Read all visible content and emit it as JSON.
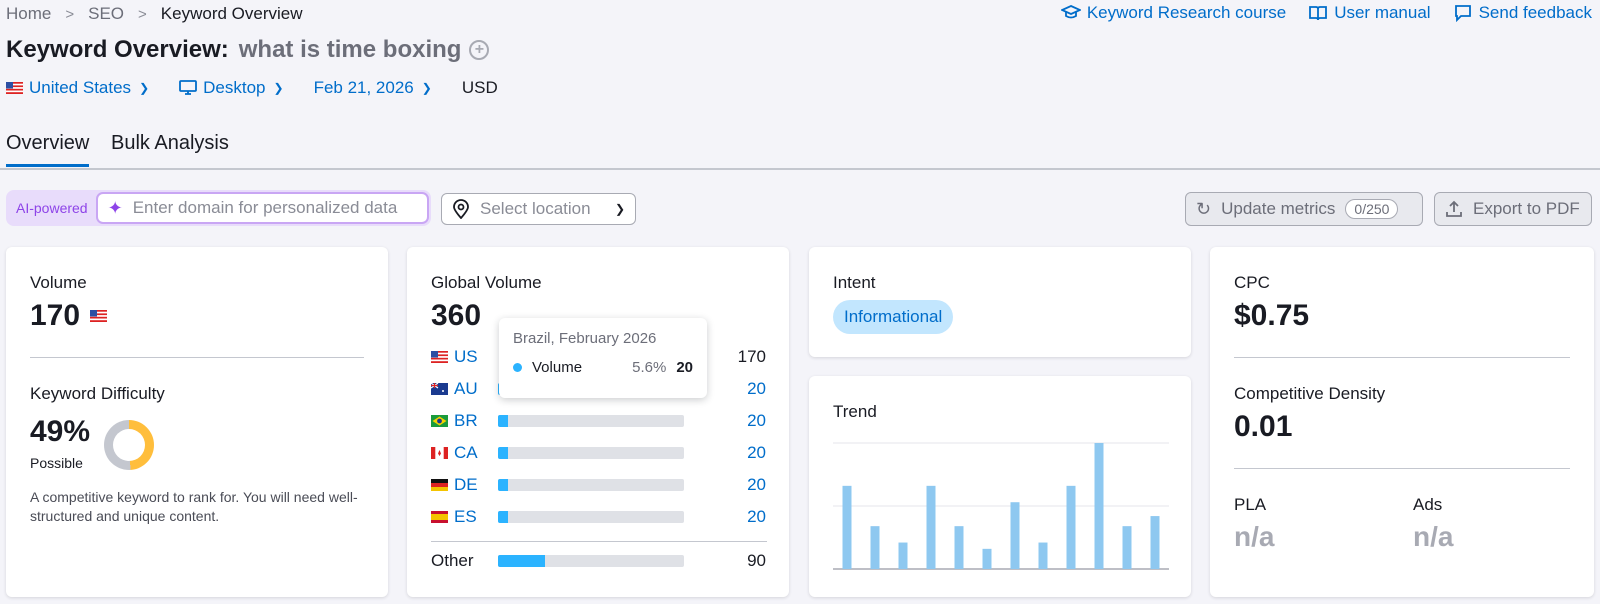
{
  "breadcrumb": [
    "Home",
    "SEO",
    "Keyword Overview"
  ],
  "top_links": {
    "course": "Keyword Research course",
    "manual": "User manual",
    "feedback": "Send feedback"
  },
  "title": {
    "label": "Keyword Overview:",
    "keyword": "what is time boxing",
    "add_icon": "plus-circle-icon"
  },
  "filters": {
    "country": "United States",
    "device": "Desktop",
    "date": "Feb 21, 2026",
    "currency": "USD"
  },
  "tabs": [
    "Overview",
    "Bulk Analysis"
  ],
  "ai_bar": {
    "badge": "AI-powered",
    "placeholder": "Enter domain for personalized data"
  },
  "location": {
    "placeholder": "Select location"
  },
  "buttons": {
    "update": "Update metrics",
    "update_count": "0/250",
    "export": "Export to PDF"
  },
  "volume_card": {
    "label": "Volume",
    "value": "170",
    "kd_label": "Keyword Difficulty",
    "kd_value": "49%",
    "kd_level": "Possible",
    "kd_fraction": 0.49,
    "description": "A competitive keyword to rank for. You will need well-structured and unique content."
  },
  "global_card": {
    "label": "Global Volume",
    "value": "360",
    "rows": [
      {
        "code": "US",
        "value": "170",
        "share": 0.47
      },
      {
        "code": "AU",
        "value": "20",
        "share": 0.056
      },
      {
        "code": "BR",
        "value": "20",
        "share": 0.056
      },
      {
        "code": "CA",
        "value": "20",
        "share": 0.056
      },
      {
        "code": "DE",
        "value": "20",
        "share": 0.056
      },
      {
        "code": "ES",
        "value": "20",
        "share": 0.056
      }
    ],
    "other": {
      "label": "Other",
      "value": "90",
      "share": 0.25
    }
  },
  "tooltip": {
    "title": "Brazil, February 2026",
    "series": "Volume",
    "percent": "5.6%",
    "value": "20"
  },
  "intent_card": {
    "label": "Intent",
    "value": "Informational"
  },
  "trend_card": {
    "label": "Trend",
    "chart_data": {
      "type": "bar",
      "values": [
        0.66,
        0.34,
        0.21,
        0.66,
        0.34,
        0.16,
        0.53,
        0.21,
        0.66,
        1.0,
        0.34,
        0.42
      ],
      "grid": true,
      "color": "#8ec8f0"
    }
  },
  "cpc_card": {
    "label": "CPC",
    "value": "$0.75",
    "density_label": "Competitive Density",
    "density_value": "0.01",
    "pla_label": "PLA",
    "pla_value": "n/a",
    "ads_label": "Ads",
    "ads_value": "n/a"
  },
  "colors": {
    "accent": "#006dca",
    "bar": "#2bb3ff",
    "ai": "#8e44e8",
    "kd": "#ffbe3c"
  }
}
